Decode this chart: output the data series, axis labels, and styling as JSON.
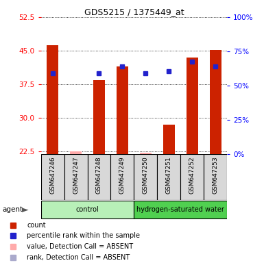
{
  "title": "GDS5215 / 1375449_at",
  "samples": [
    "GSM647246",
    "GSM647247",
    "GSM647248",
    "GSM647249",
    "GSM647250",
    "GSM647251",
    "GSM647252",
    "GSM647253"
  ],
  "red_values": [
    46.2,
    22.6,
    38.5,
    41.5,
    22.3,
    28.5,
    43.5,
    45.2
  ],
  "blue_values": [
    40.0,
    null,
    40.0,
    41.5,
    40.0,
    40.5,
    42.5,
    41.5
  ],
  "red_absent": [
    false,
    true,
    false,
    false,
    true,
    false,
    false,
    false
  ],
  "blue_absent": [
    false,
    true,
    false,
    false,
    false,
    false,
    false,
    false
  ],
  "ylim_left": [
    22.0,
    52.5
  ],
  "ylim_right": [
    0,
    100
  ],
  "yticks_left": [
    22.5,
    30.0,
    37.5,
    45.0,
    52.5
  ],
  "yticks_right": [
    0,
    25,
    50,
    75,
    100
  ],
  "groups": [
    {
      "label": "control",
      "start": 0,
      "end": 4,
      "color": "#b8f0b8"
    },
    {
      "label": "hydrogen-saturated water",
      "start": 4,
      "end": 8,
      "color": "#50d050"
    }
  ],
  "group_label_left": "agent",
  "bar_color": "#cc2200",
  "bar_absent_color": "#ffaaaa",
  "rank_color": "#2222cc",
  "rank_absent_color": "#aaaacc",
  "background_color": "#d8d8d8",
  "bar_width": 0.5,
  "marker_size": 5
}
